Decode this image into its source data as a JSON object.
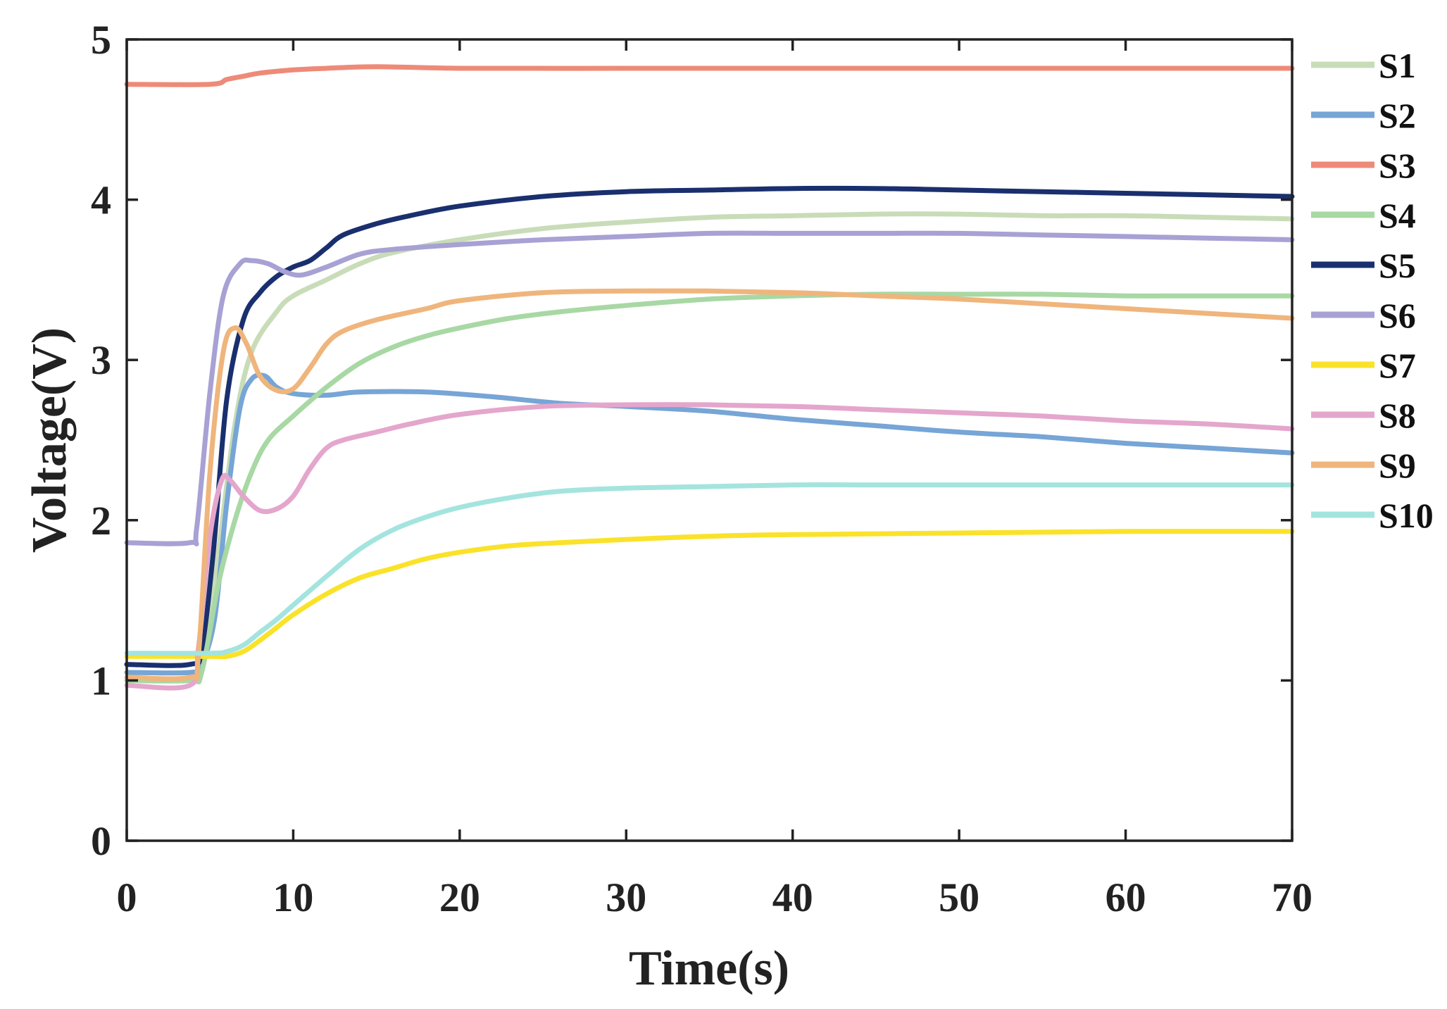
{
  "chart_data": {
    "type": "line",
    "title": "",
    "xlabel": "Time(s)",
    "ylabel": "Voltage(V)",
    "xlim": [
      0,
      70
    ],
    "ylim": [
      0,
      5
    ],
    "xticks": [
      "0",
      "10",
      "20",
      "30",
      "40",
      "50",
      "60",
      "70"
    ],
    "yticks": [
      "0",
      "1",
      "2",
      "3",
      "4",
      "5"
    ],
    "grid": false,
    "legend_position": "right-outside",
    "series": [
      {
        "name": "S1",
        "color": "#c8dcb8",
        "points": [
          [
            0,
            1.05
          ],
          [
            3.8,
            1.05
          ],
          [
            4.5,
            1.1
          ],
          [
            5.5,
            1.8
          ],
          [
            6.5,
            2.6
          ],
          [
            7.5,
            3.05
          ],
          [
            9,
            3.3
          ],
          [
            10,
            3.4
          ],
          [
            12,
            3.5
          ],
          [
            14,
            3.6
          ],
          [
            16,
            3.67
          ],
          [
            20,
            3.75
          ],
          [
            25,
            3.82
          ],
          [
            30,
            3.86
          ],
          [
            35,
            3.89
          ],
          [
            40,
            3.9
          ],
          [
            45,
            3.91
          ],
          [
            50,
            3.91
          ],
          [
            55,
            3.9
          ],
          [
            60,
            3.9
          ],
          [
            65,
            3.89
          ],
          [
            70,
            3.88
          ]
        ]
      },
      {
        "name": "S2",
        "color": "#76a5d6",
        "points": [
          [
            0,
            1.05
          ],
          [
            3.8,
            1.05
          ],
          [
            4.5,
            1.1
          ],
          [
            5.3,
            1.4
          ],
          [
            6,
            2.1
          ],
          [
            6.8,
            2.7
          ],
          [
            7.5,
            2.88
          ],
          [
            8.3,
            2.9
          ],
          [
            9,
            2.83
          ],
          [
            10,
            2.79
          ],
          [
            12,
            2.78
          ],
          [
            14,
            2.8
          ],
          [
            18,
            2.8
          ],
          [
            22,
            2.77
          ],
          [
            26,
            2.73
          ],
          [
            30,
            2.71
          ],
          [
            35,
            2.68
          ],
          [
            40,
            2.63
          ],
          [
            45,
            2.59
          ],
          [
            50,
            2.55
          ],
          [
            55,
            2.52
          ],
          [
            60,
            2.48
          ],
          [
            65,
            2.45
          ],
          [
            70,
            2.42
          ]
        ]
      },
      {
        "name": "S3",
        "color": "#ee8a78",
        "points": [
          [
            0,
            4.72
          ],
          [
            5,
            4.72
          ],
          [
            6,
            4.75
          ],
          [
            7,
            4.77
          ],
          [
            8,
            4.79
          ],
          [
            10,
            4.81
          ],
          [
            12,
            4.82
          ],
          [
            15,
            4.83
          ],
          [
            20,
            4.82
          ],
          [
            30,
            4.82
          ],
          [
            40,
            4.82
          ],
          [
            50,
            4.82
          ],
          [
            60,
            4.82
          ],
          [
            70,
            4.82
          ]
        ]
      },
      {
        "name": "S4",
        "color": "#a8d8a4",
        "points": [
          [
            0,
            1.0
          ],
          [
            3.8,
            1.0
          ],
          [
            4.5,
            1.05
          ],
          [
            5.5,
            1.6
          ],
          [
            6.5,
            2.0
          ],
          [
            7.5,
            2.3
          ],
          [
            8.5,
            2.5
          ],
          [
            10,
            2.65
          ],
          [
            12,
            2.83
          ],
          [
            14,
            2.98
          ],
          [
            16,
            3.08
          ],
          [
            18,
            3.15
          ],
          [
            20,
            3.2
          ],
          [
            23,
            3.26
          ],
          [
            26,
            3.3
          ],
          [
            30,
            3.34
          ],
          [
            35,
            3.38
          ],
          [
            40,
            3.4
          ],
          [
            45,
            3.41
          ],
          [
            50,
            3.41
          ],
          [
            55,
            3.41
          ],
          [
            60,
            3.4
          ],
          [
            65,
            3.4
          ],
          [
            70,
            3.4
          ]
        ]
      },
      {
        "name": "S5",
        "color": "#1a2f6e",
        "points": [
          [
            0,
            1.1
          ],
          [
            3.8,
            1.1
          ],
          [
            4.5,
            1.2
          ],
          [
            5.2,
            1.8
          ],
          [
            6,
            2.75
          ],
          [
            7,
            3.25
          ],
          [
            8,
            3.42
          ],
          [
            9,
            3.52
          ],
          [
            10,
            3.58
          ],
          [
            11,
            3.62
          ],
          [
            12,
            3.7
          ],
          [
            13,
            3.78
          ],
          [
            15,
            3.85
          ],
          [
            17,
            3.9
          ],
          [
            20,
            3.96
          ],
          [
            25,
            4.02
          ],
          [
            30,
            4.05
          ],
          [
            35,
            4.06
          ],
          [
            40,
            4.07
          ],
          [
            45,
            4.07
          ],
          [
            50,
            4.06
          ],
          [
            55,
            4.05
          ],
          [
            60,
            4.04
          ],
          [
            65,
            4.03
          ],
          [
            70,
            4.02
          ]
        ]
      },
      {
        "name": "S6",
        "color": "#a7a1d4",
        "points": [
          [
            0,
            1.86
          ],
          [
            3.8,
            1.86
          ],
          [
            4.2,
            1.95
          ],
          [
            5,
            2.8
          ],
          [
            5.8,
            3.4
          ],
          [
            6.8,
            3.6
          ],
          [
            7.5,
            3.62
          ],
          [
            8.5,
            3.6
          ],
          [
            9.5,
            3.55
          ],
          [
            10.5,
            3.53
          ],
          [
            12,
            3.58
          ],
          [
            14,
            3.66
          ],
          [
            16,
            3.69
          ],
          [
            20,
            3.72
          ],
          [
            25,
            3.75
          ],
          [
            30,
            3.77
          ],
          [
            35,
            3.79
          ],
          [
            40,
            3.79
          ],
          [
            45,
            3.79
          ],
          [
            50,
            3.79
          ],
          [
            55,
            3.78
          ],
          [
            60,
            3.77
          ],
          [
            65,
            3.76
          ],
          [
            70,
            3.75
          ]
        ]
      },
      {
        "name": "S7",
        "color": "#fae22a",
        "points": [
          [
            0,
            1.15
          ],
          [
            5,
            1.15
          ],
          [
            6,
            1.15
          ],
          [
            7,
            1.18
          ],
          [
            8,
            1.25
          ],
          [
            9,
            1.33
          ],
          [
            10,
            1.41
          ],
          [
            12,
            1.54
          ],
          [
            14,
            1.64
          ],
          [
            16,
            1.7
          ],
          [
            18,
            1.76
          ],
          [
            20,
            1.8
          ],
          [
            23,
            1.84
          ],
          [
            26,
            1.86
          ],
          [
            30,
            1.88
          ],
          [
            35,
            1.9
          ],
          [
            40,
            1.91
          ],
          [
            50,
            1.92
          ],
          [
            60,
            1.93
          ],
          [
            70,
            1.93
          ]
        ]
      },
      {
        "name": "S8",
        "color": "#e4a6cc",
        "points": [
          [
            0,
            0.97
          ],
          [
            3.8,
            0.97
          ],
          [
            4.3,
            1.2
          ],
          [
            5,
            1.9
          ],
          [
            5.7,
            2.25
          ],
          [
            6.2,
            2.25
          ],
          [
            7,
            2.15
          ],
          [
            8,
            2.06
          ],
          [
            9,
            2.07
          ],
          [
            10,
            2.15
          ],
          [
            11,
            2.32
          ],
          [
            12,
            2.45
          ],
          [
            13,
            2.5
          ],
          [
            15,
            2.55
          ],
          [
            17,
            2.6
          ],
          [
            20,
            2.66
          ],
          [
            25,
            2.71
          ],
          [
            30,
            2.72
          ],
          [
            35,
            2.72
          ],
          [
            40,
            2.71
          ],
          [
            45,
            2.69
          ],
          [
            50,
            2.67
          ],
          [
            55,
            2.65
          ],
          [
            60,
            2.62
          ],
          [
            65,
            2.6
          ],
          [
            70,
            2.57
          ]
        ]
      },
      {
        "name": "S9",
        "color": "#efb57c",
        "points": [
          [
            0,
            1.02
          ],
          [
            3.8,
            1.02
          ],
          [
            4.3,
            1.15
          ],
          [
            5,
            2.3
          ],
          [
            5.8,
            3.05
          ],
          [
            6.5,
            3.2
          ],
          [
            7.2,
            3.1
          ],
          [
            8,
            2.9
          ],
          [
            9,
            2.81
          ],
          [
            10,
            2.82
          ],
          [
            11,
            2.95
          ],
          [
            12,
            3.1
          ],
          [
            13,
            3.18
          ],
          [
            15,
            3.25
          ],
          [
            18,
            3.32
          ],
          [
            20,
            3.37
          ],
          [
            25,
            3.42
          ],
          [
            30,
            3.43
          ],
          [
            35,
            3.43
          ],
          [
            40,
            3.42
          ],
          [
            45,
            3.4
          ],
          [
            50,
            3.38
          ],
          [
            55,
            3.35
          ],
          [
            60,
            3.32
          ],
          [
            65,
            3.29
          ],
          [
            70,
            3.26
          ]
        ]
      },
      {
        "name": "S10",
        "color": "#a4e4df",
        "points": [
          [
            0,
            1.17
          ],
          [
            5,
            1.17
          ],
          [
            6,
            1.18
          ],
          [
            7,
            1.22
          ],
          [
            8,
            1.3
          ],
          [
            9,
            1.38
          ],
          [
            10,
            1.47
          ],
          [
            12,
            1.65
          ],
          [
            14,
            1.82
          ],
          [
            16,
            1.94
          ],
          [
            18,
            2.02
          ],
          [
            20,
            2.08
          ],
          [
            23,
            2.14
          ],
          [
            26,
            2.18
          ],
          [
            30,
            2.2
          ],
          [
            35,
            2.21
          ],
          [
            40,
            2.22
          ],
          [
            45,
            2.22
          ],
          [
            50,
            2.22
          ],
          [
            55,
            2.22
          ],
          [
            60,
            2.22
          ],
          [
            65,
            2.22
          ],
          [
            70,
            2.22
          ]
        ]
      }
    ]
  }
}
